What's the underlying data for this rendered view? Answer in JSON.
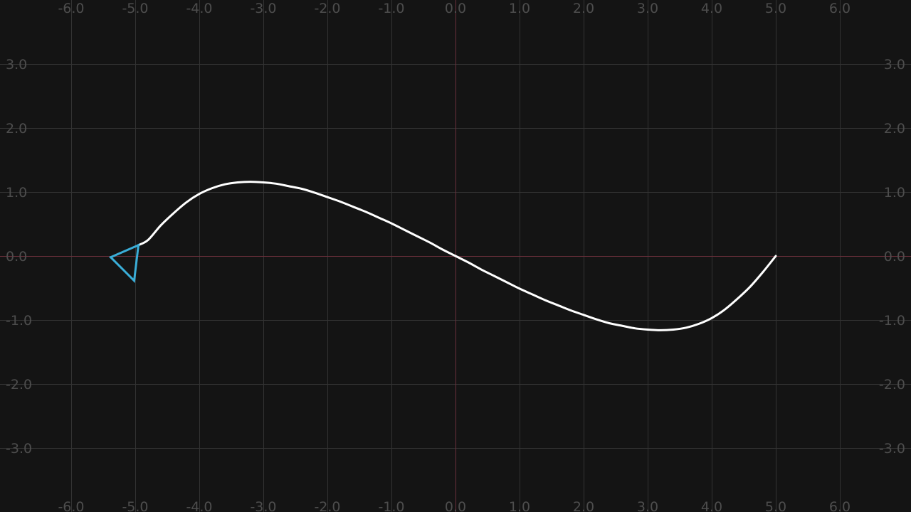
{
  "chart_data": {
    "type": "line",
    "xlim": [
      -7.1,
      7.1
    ],
    "ylim": [
      -4.0,
      4.0
    ],
    "x_ticks": [
      -6.0,
      -5.0,
      -4.0,
      -3.0,
      -2.0,
      -1.0,
      0.0,
      1.0,
      2.0,
      3.0,
      4.0,
      5.0,
      6.0
    ],
    "y_ticks": [
      -3.0,
      -2.0,
      -1.0,
      0.0,
      1.0,
      2.0,
      3.0
    ],
    "x_tick_labels": [
      "-6.0",
      "-5.0",
      "-4.0",
      "-3.0",
      "-2.0",
      "-1.0",
      "0.0",
      "1.0",
      "2.0",
      "3.0",
      "4.0",
      "5.0",
      "6.0"
    ],
    "y_tick_labels": [
      "-3.0",
      "-2.0",
      "-1.0",
      "0.0",
      "1.0",
      "2.0",
      "3.0"
    ],
    "x_tick_labels_position": "top and bottom",
    "y_tick_labels_position": "left and right",
    "grid": true,
    "series": [
      {
        "x": [
          5.0,
          4.8,
          4.6,
          4.4,
          4.2,
          4.0,
          3.8,
          3.6,
          3.4,
          3.2,
          3.0,
          2.8,
          2.6,
          2.4,
          2.2,
          2.0,
          1.8,
          1.6,
          1.4,
          1.2,
          1.0,
          0.8,
          0.6,
          0.4,
          0.2,
          0.0,
          -0.2,
          -0.4,
          -0.6,
          -0.8,
          -1.0,
          -1.2,
          -1.4,
          -1.6,
          -1.8,
          -2.0,
          -2.2,
          -2.4,
          -2.6,
          -2.8,
          -3.0,
          -3.2,
          -3.4,
          -3.6,
          -3.8,
          -4.0,
          -4.2,
          -4.4,
          -4.6,
          -4.8,
          -4.95
        ],
        "y": [
          0.0,
          -0.25,
          -0.48,
          -0.67,
          -0.84,
          -0.97,
          -1.06,
          -1.12,
          -1.15,
          -1.16,
          -1.15,
          -1.13,
          -1.09,
          -1.05,
          -0.99,
          -0.92,
          -0.85,
          -0.77,
          -0.69,
          -0.6,
          -0.51,
          -0.41,
          -0.31,
          -0.21,
          -0.1,
          0.0,
          0.1,
          0.21,
          0.31,
          0.41,
          0.51,
          0.6,
          0.69,
          0.77,
          0.85,
          0.92,
          0.99,
          1.05,
          1.09,
          1.13,
          1.15,
          1.16,
          1.15,
          1.12,
          1.06,
          0.97,
          0.84,
          0.67,
          0.48,
          0.25,
          0.17
        ]
      }
    ],
    "colors": {
      "background": "#141414",
      "grid": "#333333",
      "axis": "#6a2f3b",
      "tick_label": "#4d4d4d",
      "curve": "#ffffff",
      "marker": "#3aaed8"
    },
    "marker": {
      "shape": "triangle",
      "icon": "turtle-cursor-icon",
      "x": -4.95,
      "y": 0.17,
      "heading_deg": 160
    }
  }
}
